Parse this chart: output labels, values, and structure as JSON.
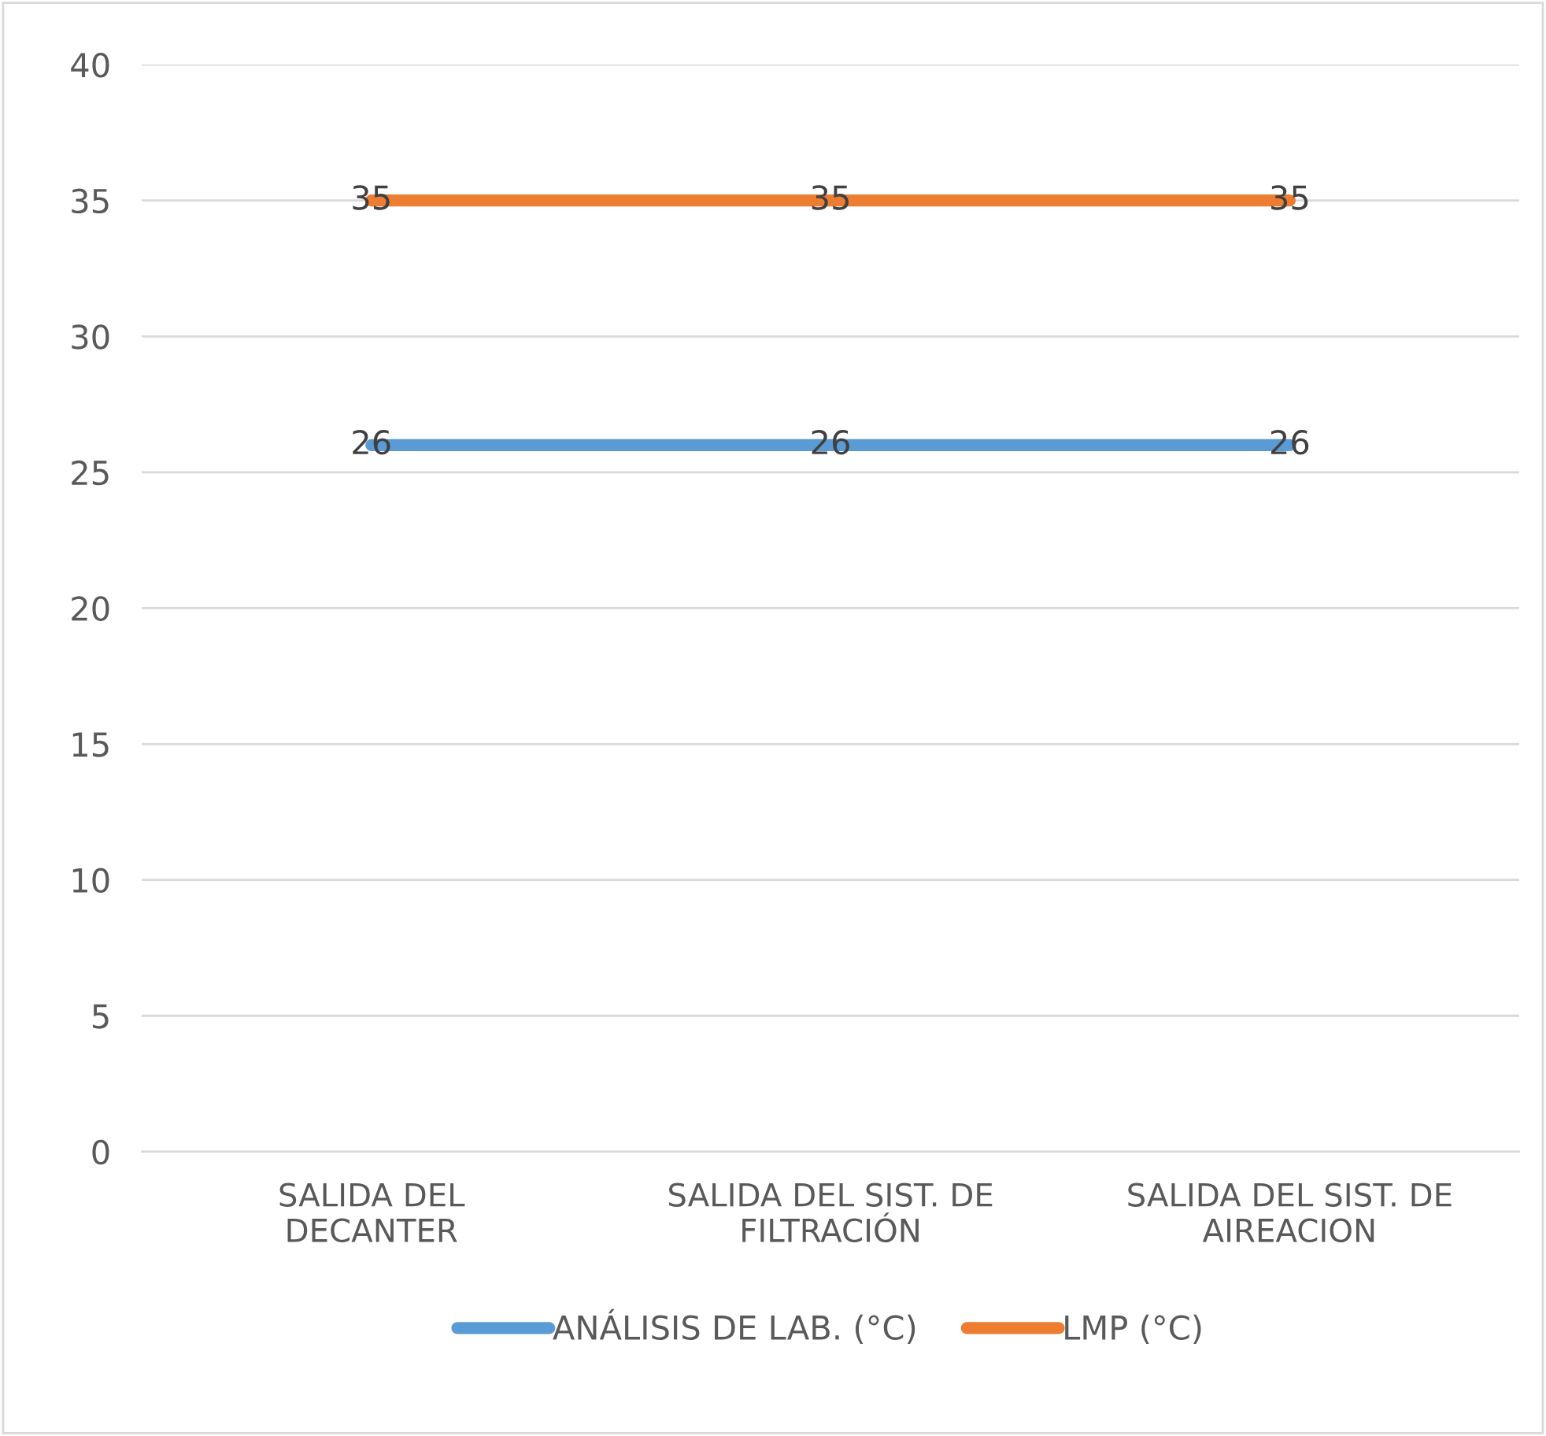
{
  "chart_data": {
    "type": "line",
    "categories": [
      "SALIDA DEL\nDECANTER",
      "SALIDA DEL SIST. DE\nFILTRACIÓN",
      "SALIDA DEL SIST. DE\nAIREACION"
    ],
    "series": [
      {
        "name": "ANÁLISIS DE LAB. (°C)",
        "color": "#5b9bd5",
        "values": [
          26,
          26,
          26
        ]
      },
      {
        "name": "LMP (°C)",
        "color": "#ed7d31",
        "values": [
          35,
          35,
          35
        ]
      }
    ],
    "ylim": [
      0,
      40
    ],
    "yticks": [
      0,
      5,
      10,
      15,
      20,
      25,
      30,
      35,
      40
    ],
    "grid": "y",
    "legend": "bottom",
    "data_labels": true,
    "marker": "none",
    "line_style": "solid"
  }
}
